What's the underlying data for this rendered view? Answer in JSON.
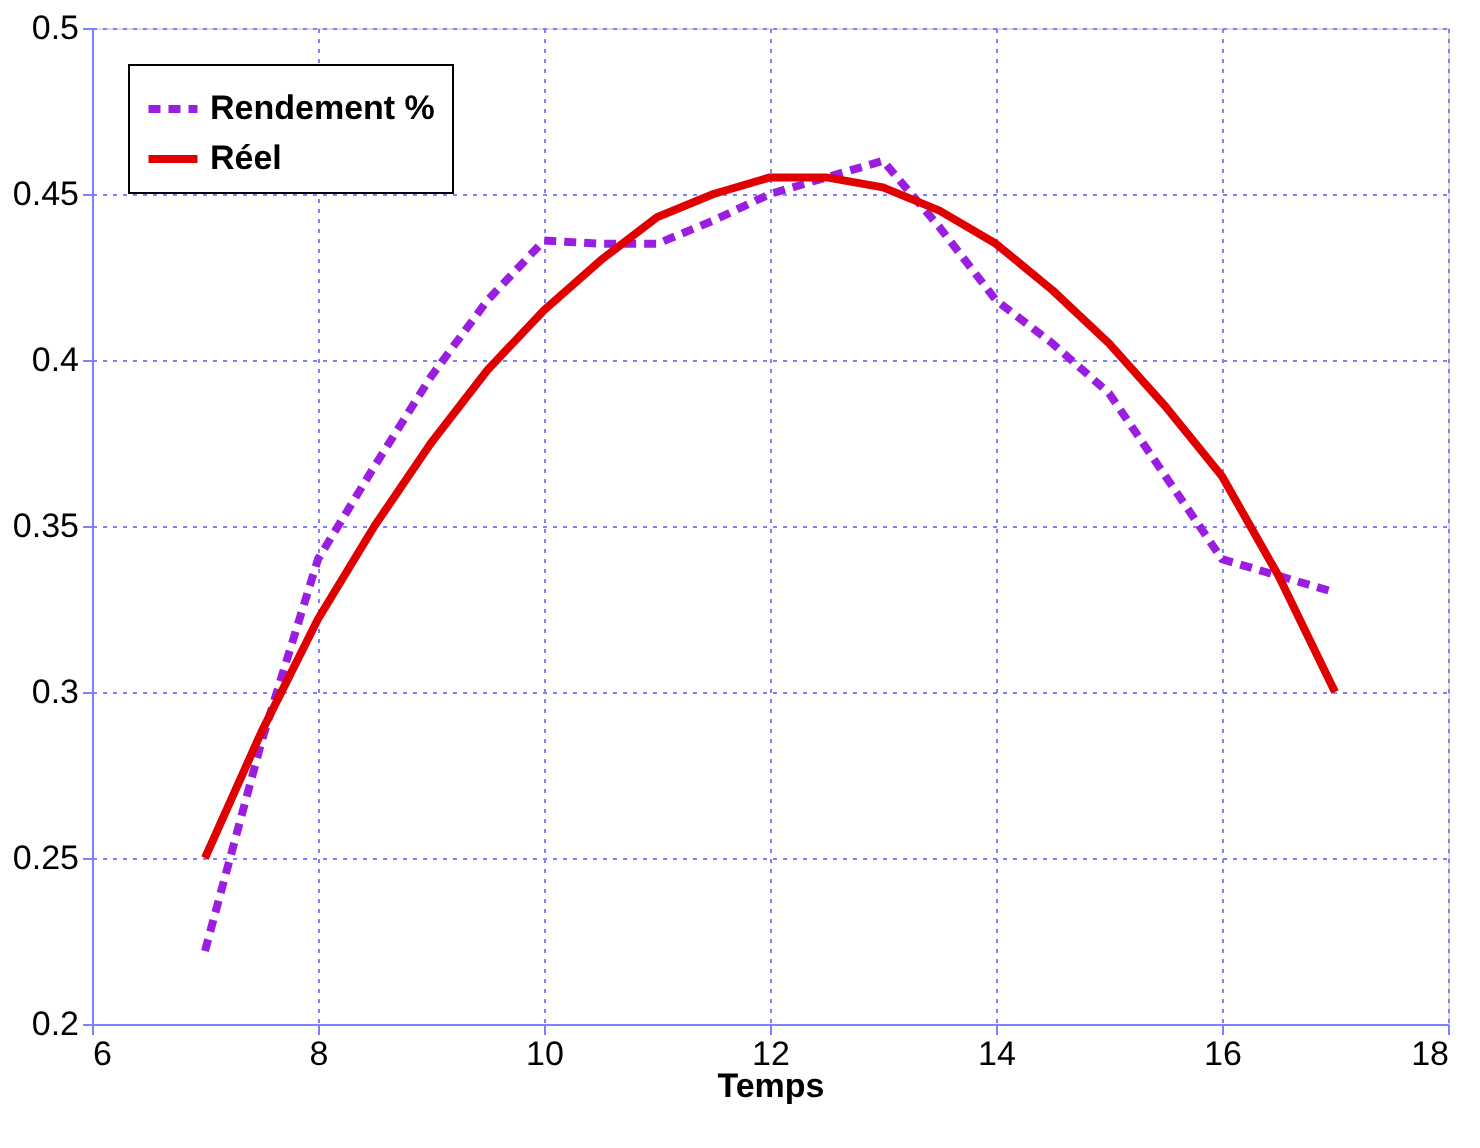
{
  "chart_data": {
    "type": "line",
    "xlabel": "Temps",
    "xlim": [
      6,
      18
    ],
    "xticks": [
      6,
      8,
      10,
      12,
      14,
      16,
      18
    ],
    "ylim": [
      0.2,
      0.5
    ],
    "yticks": [
      0.2,
      0.25,
      0.3,
      0.35,
      0.4,
      0.45,
      0.5
    ],
    "grid": true,
    "legend": "top left",
    "series": [
      {
        "name": "Rendement %",
        "color": "#9a1ee0",
        "line_style": "dashed",
        "x": [
          7,
          7.5,
          8,
          8.5,
          9,
          9.5,
          10,
          10.5,
          11,
          11.5,
          12,
          12.5,
          13,
          13.5,
          14,
          14.5,
          15,
          15.5,
          16,
          16.5,
          17
        ],
        "values": [
          0.222,
          0.285,
          0.34,
          0.368,
          0.395,
          0.418,
          0.436,
          0.435,
          0.435,
          0.442,
          0.45,
          0.455,
          0.46,
          0.44,
          0.418,
          0.405,
          0.39,
          0.365,
          0.34,
          0.335,
          0.33
        ]
      },
      {
        "name": "Réel",
        "color": "#e00000",
        "line_style": "solid",
        "x": [
          7,
          7.5,
          8,
          8.5,
          9,
          9.5,
          10,
          10.5,
          11,
          11.5,
          12,
          12.5,
          13,
          13.5,
          14,
          14.5,
          15,
          15.5,
          16,
          16.5,
          17
        ],
        "values": [
          0.25,
          0.288,
          0.322,
          0.35,
          0.375,
          0.397,
          0.415,
          0.43,
          0.443,
          0.45,
          0.455,
          0.455,
          0.452,
          0.445,
          0.435,
          0.421,
          0.405,
          0.386,
          0.365,
          0.335,
          0.3
        ]
      }
    ]
  }
}
